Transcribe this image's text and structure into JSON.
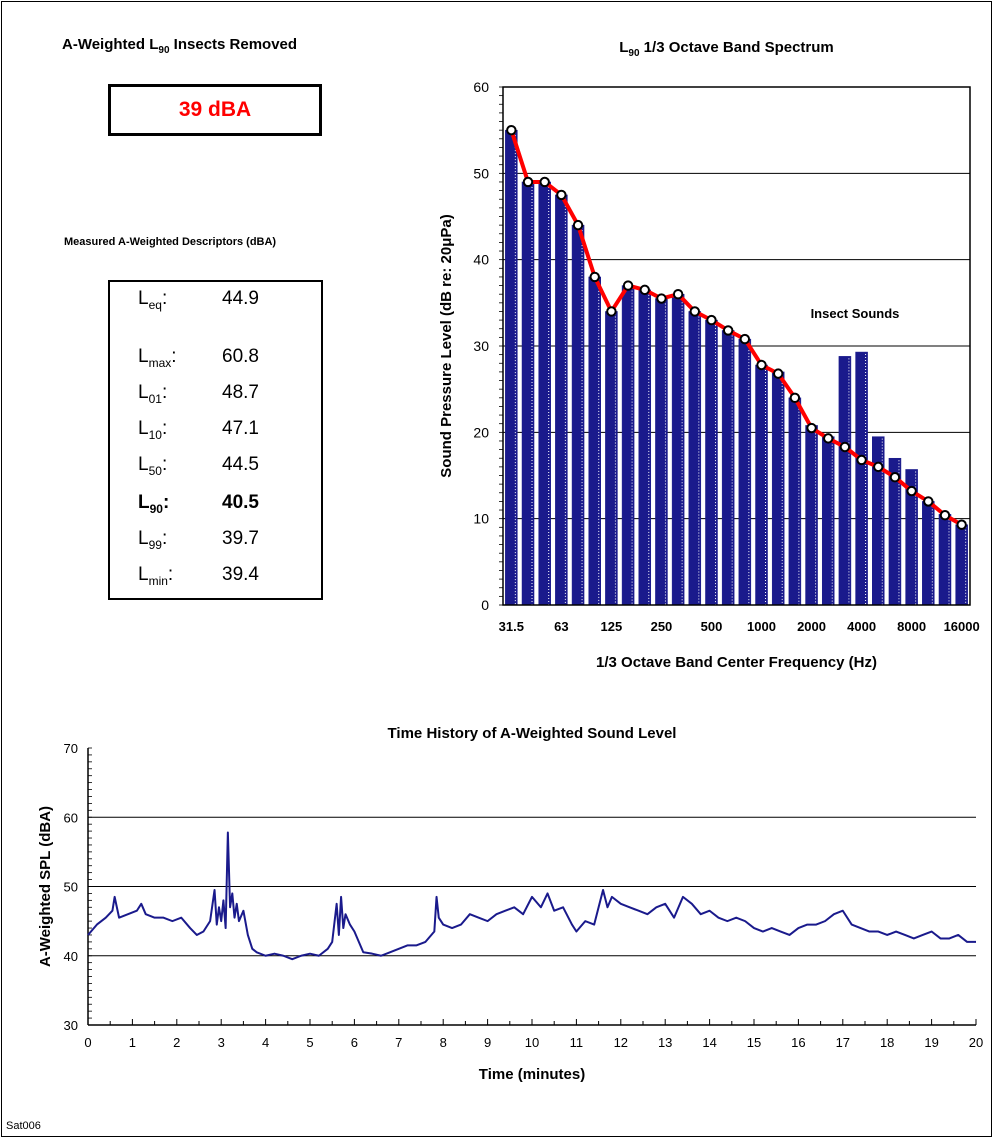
{
  "summary": {
    "title_pre": "A-Weighted L",
    "title_sub": "90",
    "title_post": " Insects Removed",
    "value": "39 dBA"
  },
  "descriptors": {
    "title": "Measured A-Weighted Descriptors (dBA)",
    "rows": [
      {
        "name": "L",
        "sub": "eq",
        "suffix": ":",
        "value": "44.9",
        "bold": false
      },
      {
        "name": "L",
        "sub": "max",
        "suffix": ":",
        "value": "60.8",
        "bold": false
      },
      {
        "name": "L",
        "sub": "01",
        "suffix": ":",
        "value": "48.7",
        "bold": false
      },
      {
        "name": "L",
        "sub": "10",
        "suffix": ":",
        "value": "47.1",
        "bold": false
      },
      {
        "name": "L",
        "sub": "50",
        "suffix": ":",
        "value": "44.5",
        "bold": false
      },
      {
        "name": "L",
        "sub": "90",
        "suffix": ":",
        "value": "40.5",
        "bold": true
      },
      {
        "name": "L",
        "sub": "99",
        "suffix": ":",
        "value": "39.7",
        "bold": false
      },
      {
        "name": "L",
        "sub": "min",
        "suffix": ":",
        "value": "39.4",
        "bold": false
      }
    ]
  },
  "footnote": "Sat006",
  "chart_data": [
    {
      "type": "bar",
      "title_pre": "L",
      "title_sub": "90",
      "title_post": " 1/3 Octave Band Spectrum",
      "xlabel": "1/3 Octave Band Center Frequency (Hz)",
      "ylabel": "Sound Pressure Level (dB re: 20μPa)",
      "ylim": [
        0,
        60
      ],
      "yticks": [
        0,
        10,
        20,
        30,
        40,
        50,
        60
      ],
      "tick_labels": [
        "31.5",
        "63",
        "125",
        "250",
        "500",
        "1000",
        "2000",
        "4000",
        "8000",
        "16000"
      ],
      "categories": [
        "31.5",
        "40",
        "50",
        "63",
        "80",
        "100",
        "125",
        "160",
        "200",
        "250",
        "315",
        "400",
        "500",
        "630",
        "800",
        "1000",
        "1250",
        "1600",
        "2000",
        "2500",
        "3150",
        "4000",
        "5000",
        "6300",
        "8000",
        "10000",
        "12500",
        "16000"
      ],
      "annotation": "Insect Sounds",
      "bar_color": "#1a1a8c",
      "line_color": "#ff0000",
      "series": [
        {
          "name": "",
          "kind": "bar",
          "values": [
            55.0,
            49.0,
            49.0,
            47.5,
            44.0,
            38.0,
            34.0,
            37.0,
            36.5,
            35.5,
            36.0,
            34.0,
            33.0,
            31.8,
            30.8,
            27.8,
            27.0,
            24.0,
            20.8,
            19.5,
            28.8,
            29.3,
            19.5,
            17.0,
            15.7,
            12.0,
            10.5,
            9.3
          ]
        },
        {
          "name": "",
          "kind": "line",
          "values": [
            55.0,
            49.0,
            49.0,
            47.5,
            44.0,
            38.0,
            34.0,
            37.0,
            36.5,
            35.5,
            36.0,
            34.0,
            33.0,
            31.8,
            30.8,
            27.8,
            26.8,
            24.0,
            20.5,
            19.3,
            18.3,
            16.8,
            16.0,
            14.8,
            13.2,
            12.0,
            10.4,
            9.3
          ]
        }
      ]
    },
    {
      "type": "line",
      "title": "Time History of A-Weighted Sound Level",
      "xlabel": "Time (minutes)",
      "ylabel": "A-Weighted SPL (dBA)",
      "xlim": [
        0,
        20
      ],
      "ylim": [
        30,
        70
      ],
      "xticks": [
        0,
        1,
        2,
        3,
        4,
        5,
        6,
        7,
        8,
        9,
        10,
        11,
        12,
        13,
        14,
        15,
        16,
        17,
        18,
        19,
        20
      ],
      "yticks": [
        30,
        40,
        50,
        60,
        70
      ],
      "grid": true,
      "line_color": "#1a1a8c",
      "series": [
        {
          "name": "",
          "x": [
            0,
            0.2,
            0.4,
            0.55,
            0.6,
            0.7,
            0.9,
            1.1,
            1.2,
            1.3,
            1.5,
            1.7,
            1.9,
            2.1,
            2.3,
            2.45,
            2.6,
            2.75,
            2.85,
            2.9,
            2.95,
            3.0,
            3.05,
            3.1,
            3.15,
            3.2,
            3.25,
            3.3,
            3.35,
            3.4,
            3.5,
            3.6,
            3.7,
            3.8,
            4.0,
            4.2,
            4.4,
            4.6,
            4.8,
            5.0,
            5.2,
            5.4,
            5.5,
            5.6,
            5.65,
            5.7,
            5.75,
            5.8,
            5.9,
            6.0,
            6.1,
            6.2,
            6.4,
            6.6,
            6.8,
            7.0,
            7.2,
            7.4,
            7.6,
            7.8,
            7.85,
            7.9,
            8.0,
            8.2,
            8.4,
            8.6,
            8.8,
            9.0,
            9.2,
            9.4,
            9.6,
            9.8,
            10.0,
            10.2,
            10.35,
            10.5,
            10.7,
            10.9,
            11.0,
            11.2,
            11.4,
            11.5,
            11.6,
            11.7,
            11.8,
            12.0,
            12.2,
            12.4,
            12.6,
            12.8,
            13.0,
            13.2,
            13.4,
            13.6,
            13.8,
            14.0,
            14.2,
            14.4,
            14.6,
            14.8,
            15.0,
            15.2,
            15.4,
            15.6,
            15.8,
            16.0,
            16.2,
            16.4,
            16.6,
            16.8,
            17.0,
            17.2,
            17.4,
            17.6,
            17.8,
            18.0,
            18.2,
            18.4,
            18.6,
            18.8,
            19.0,
            19.2,
            19.4,
            19.6,
            19.8,
            20.0
          ],
          "y": [
            43.0,
            44.5,
            45.5,
            46.5,
            48.5,
            45.5,
            46.0,
            46.5,
            47.5,
            46.0,
            45.5,
            45.5,
            45.0,
            45.5,
            44.0,
            43.0,
            43.5,
            45.0,
            49.5,
            44.5,
            47.0,
            45.0,
            48.0,
            44.0,
            57.8,
            47.0,
            49.0,
            45.5,
            47.5,
            45.0,
            46.5,
            43.0,
            41.0,
            40.5,
            40.0,
            40.3,
            40.0,
            39.5,
            40.0,
            40.3,
            40.0,
            41.0,
            42.0,
            47.5,
            43.0,
            48.5,
            44.0,
            46.0,
            44.5,
            43.5,
            42.0,
            40.5,
            40.3,
            40.0,
            40.5,
            41.0,
            41.5,
            41.5,
            42.0,
            43.5,
            48.5,
            45.5,
            44.5,
            44.0,
            44.5,
            46.0,
            45.5,
            45.0,
            46.0,
            46.5,
            47.0,
            46.0,
            48.5,
            47.0,
            49.0,
            46.5,
            47.0,
            44.5,
            43.5,
            45.0,
            44.5,
            47.0,
            49.5,
            47.0,
            48.5,
            47.5,
            47.0,
            46.5,
            46.0,
            47.0,
            47.5,
            45.5,
            48.5,
            47.5,
            46.0,
            46.5,
            45.5,
            45.0,
            45.5,
            45.0,
            44.0,
            43.5,
            44.0,
            43.5,
            43.0,
            44.0,
            44.5,
            44.5,
            45.0,
            46.0,
            46.5,
            44.5,
            44.0,
            43.5,
            43.5,
            43.0,
            43.5,
            43.0,
            42.5,
            43.0,
            43.5,
            42.5,
            42.5,
            43.0,
            42.0,
            42.0
          ]
        }
      ]
    }
  ]
}
